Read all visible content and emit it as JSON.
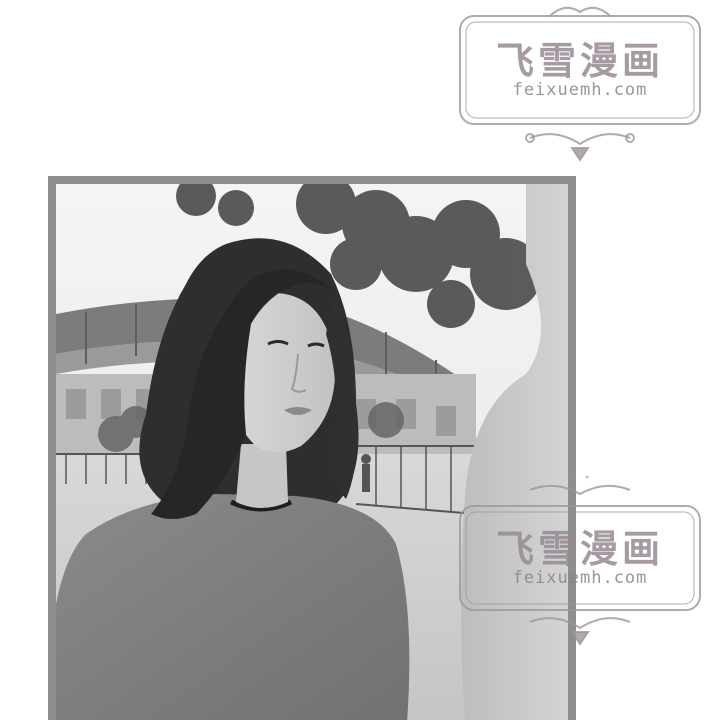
{
  "watermarks": [
    {
      "title": "飞雪漫画",
      "url": "feixuemh.com"
    },
    {
      "title": "飞雪漫画",
      "url": "feixuemh.com"
    }
  ],
  "photo": {
    "style": "grayscale",
    "frame_color": "#8e8e8e"
  },
  "colors": {
    "watermark_ink": "#968a92",
    "background": "#ffffff"
  }
}
